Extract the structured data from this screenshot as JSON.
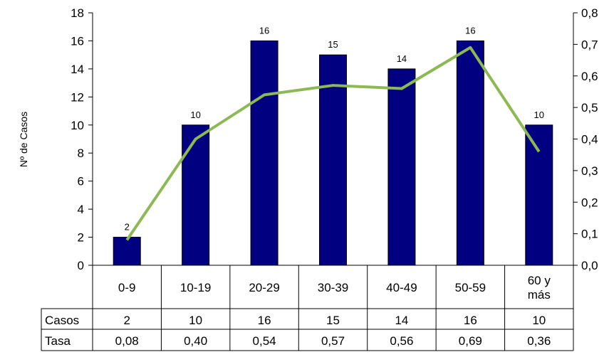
{
  "chart_data": {
    "type": "bar",
    "title": "",
    "xlabel": "",
    "ylabel": "Nº de Casos",
    "y2label": "",
    "categories": [
      "0-9",
      "10-19",
      "20-29",
      "30-39",
      "40-49",
      "50-59",
      "60 y más"
    ],
    "series": [
      {
        "name": "Casos",
        "type": "bar",
        "axis": "left",
        "values": [
          2,
          10,
          16,
          15,
          14,
          16,
          10
        ],
        "color": "#000080"
      },
      {
        "name": "Tasa",
        "type": "line",
        "axis": "right",
        "values": [
          0.08,
          0.4,
          0.54,
          0.57,
          0.56,
          0.69,
          0.36
        ],
        "color": "#8DB955"
      }
    ],
    "ylim": [
      0,
      18
    ],
    "yticks": [
      0,
      2,
      4,
      6,
      8,
      10,
      12,
      14,
      16,
      18
    ],
    "y2lim": [
      0,
      0.8
    ],
    "y2ticks": [
      "0,0",
      "0,1",
      "0,2",
      "0,3",
      "0,4",
      "0,5",
      "0,6",
      "0,7",
      "0,8"
    ],
    "bar_labels": [
      "2",
      "10",
      "16",
      "15",
      "14",
      "16",
      "10"
    ],
    "category_labels": [
      [
        "0-9"
      ],
      [
        "10-19"
      ],
      [
        "20-29"
      ],
      [
        "30-39"
      ],
      [
        "40-49"
      ],
      [
        "50-59"
      ],
      [
        "60 y",
        "más"
      ]
    ],
    "data_table": {
      "rows": [
        {
          "label": "Casos",
          "values": [
            "2",
            "10",
            "16",
            "15",
            "14",
            "16",
            "10"
          ]
        },
        {
          "label": "Tasa",
          "values": [
            "0,08",
            "0,40",
            "0,54",
            "0,57",
            "0,56",
            "0,69",
            "0,36"
          ]
        }
      ]
    },
    "grid": false,
    "legend": "none"
  }
}
